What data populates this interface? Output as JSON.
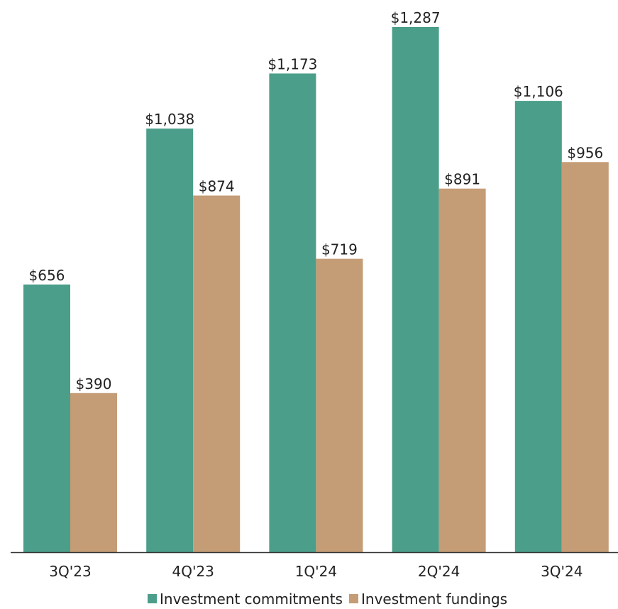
{
  "chart_data": {
    "type": "bar",
    "categories": [
      "3Q'23",
      "4Q'23",
      "1Q'24",
      "2Q'24",
      "3Q'24"
    ],
    "series": [
      {
        "name": "Investment commitments",
        "values": [
          656,
          1038,
          1173,
          1287,
          1106
        ],
        "labels": [
          "$656",
          "$1,038",
          "$1,173",
          "$1,287",
          "$1,106"
        ],
        "color": "#4b9e8a"
      },
      {
        "name": "Investment fundings",
        "values": [
          390,
          874,
          719,
          891,
          956
        ],
        "labels": [
          "$390",
          "$874",
          "$719",
          "$891",
          "$956"
        ],
        "color": "#c49c76"
      }
    ],
    "ylim": [
      0,
      1320
    ],
    "grid": false,
    "legend_position": "bottom-center",
    "title": "",
    "xlabel": "",
    "ylabel": ""
  }
}
